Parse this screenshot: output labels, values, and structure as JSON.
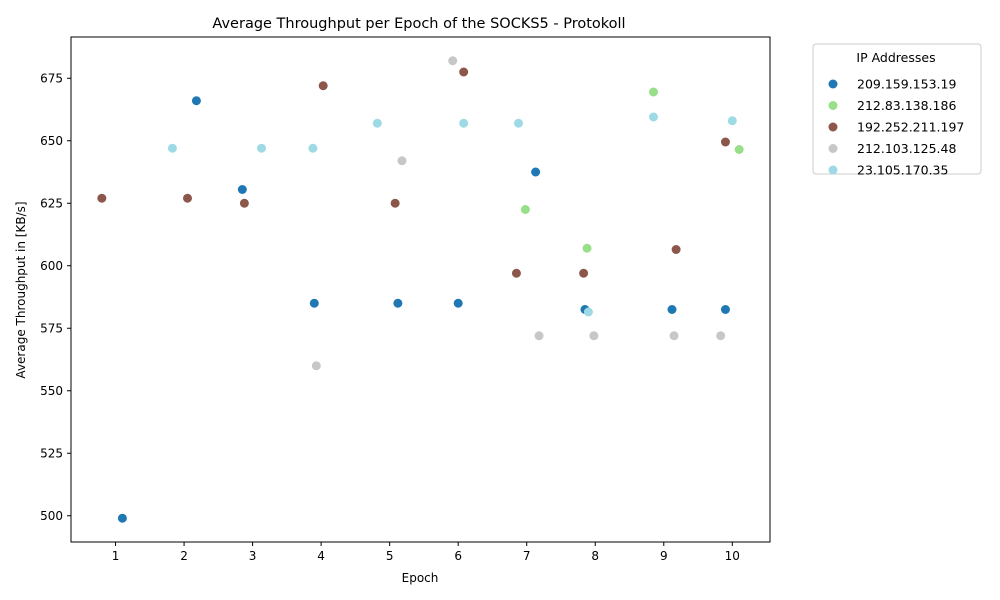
{
  "chart_data": {
    "type": "scatter",
    "title": "Average Throughput per Epoch of the SOCKS5 - Protokoll",
    "xlabel": "Epoch",
    "ylabel": "Average Throughput in [KB/s]",
    "xlim": [
      0.35,
      10.55
    ],
    "ylim": [
      489.5,
      691.5
    ],
    "xticks": [
      1,
      2,
      3,
      4,
      5,
      6,
      7,
      8,
      9,
      10
    ],
    "yticks": [
      500,
      525,
      550,
      575,
      600,
      625,
      650,
      675
    ],
    "legend": {
      "title": "IP Addresses",
      "placement": "outside-right-top"
    },
    "series": [
      {
        "name": "209.159.153.19",
        "color": "#1f77b4",
        "points": [
          {
            "x": 1.1,
            "y": 499
          },
          {
            "x": 2.18,
            "y": 666
          },
          {
            "x": 2.85,
            "y": 630.5
          },
          {
            "x": 3.9,
            "y": 585
          },
          {
            "x": 5.12,
            "y": 585
          },
          {
            "x": 6.0,
            "y": 585
          },
          {
            "x": 7.13,
            "y": 637.5
          },
          {
            "x": 7.85,
            "y": 582.5
          },
          {
            "x": 9.12,
            "y": 582.5
          },
          {
            "x": 9.9,
            "y": 582.5
          }
        ]
      },
      {
        "name": "212.83.138.186",
        "color": "#98df8a",
        "points": [
          {
            "x": 6.98,
            "y": 622.5
          },
          {
            "x": 7.88,
            "y": 607
          },
          {
            "x": 8.85,
            "y": 669.5
          },
          {
            "x": 10.1,
            "y": 646.5
          }
        ]
      },
      {
        "name": "192.252.211.197",
        "color": "#8c564b",
        "points": [
          {
            "x": 0.8,
            "y": 627
          },
          {
            "x": 2.05,
            "y": 627
          },
          {
            "x": 2.88,
            "y": 625
          },
          {
            "x": 4.03,
            "y": 672
          },
          {
            "x": 5.08,
            "y": 625
          },
          {
            "x": 6.08,
            "y": 677.5
          },
          {
            "x": 6.85,
            "y": 597
          },
          {
            "x": 7.83,
            "y": 597
          },
          {
            "x": 9.18,
            "y": 606.5
          },
          {
            "x": 9.9,
            "y": 649.5
          }
        ]
      },
      {
        "name": "212.103.125.48",
        "color": "#c7c7c7",
        "points": [
          {
            "x": 3.93,
            "y": 560
          },
          {
            "x": 5.18,
            "y": 642
          },
          {
            "x": 5.92,
            "y": 682
          },
          {
            "x": 7.18,
            "y": 572
          },
          {
            "x": 7.98,
            "y": 572
          },
          {
            "x": 9.15,
            "y": 572
          },
          {
            "x": 9.83,
            "y": 572
          }
        ]
      },
      {
        "name": "23.105.170.35",
        "color": "#9edae5",
        "points": [
          {
            "x": 1.83,
            "y": 647
          },
          {
            "x": 3.13,
            "y": 647
          },
          {
            "x": 3.88,
            "y": 647
          },
          {
            "x": 4.82,
            "y": 657
          },
          {
            "x": 6.08,
            "y": 657
          },
          {
            "x": 6.88,
            "y": 657
          },
          {
            "x": 7.9,
            "y": 581.5
          },
          {
            "x": 8.85,
            "y": 659.5
          },
          {
            "x": 10.0,
            "y": 658
          }
        ]
      }
    ]
  }
}
